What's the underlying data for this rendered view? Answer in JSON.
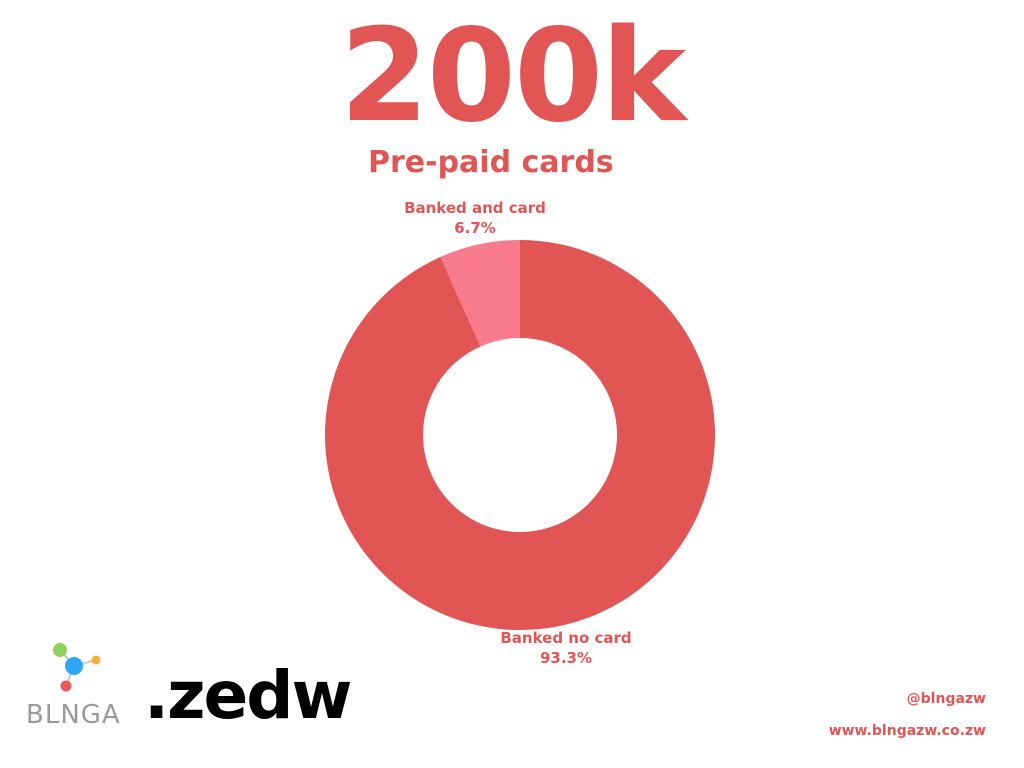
{
  "headline": "200k",
  "colors": {
    "accent": "#e15554",
    "slice_card": "#f77b8d",
    "text_dark": "#000000",
    "logo_grey": "#9a9a9a",
    "logo_green": "#8ed15a",
    "logo_blue": "#2ea8f5",
    "logo_orange": "#f6b13c",
    "logo_red": "#e85a5a"
  },
  "chart_data": {
    "type": "pie",
    "title": "Pre-paid cards",
    "categories": [
      "Banked and card",
      "Banked no card"
    ],
    "values": [
      6.7,
      93.3
    ],
    "labels": [
      {
        "name": "Banked and card",
        "value_label": "6.7%"
      },
      {
        "name": "Banked no card",
        "value_label": "93.3%"
      }
    ],
    "colors": [
      "#f77b8d",
      "#e15554"
    ],
    "donut": true
  },
  "footer": {
    "logo_text": "BLNGA",
    "logo_icon": "molecule-icon",
    "brand": ".zedw",
    "handle": "@blngazw",
    "website": "www.blngazw.co.zw"
  }
}
